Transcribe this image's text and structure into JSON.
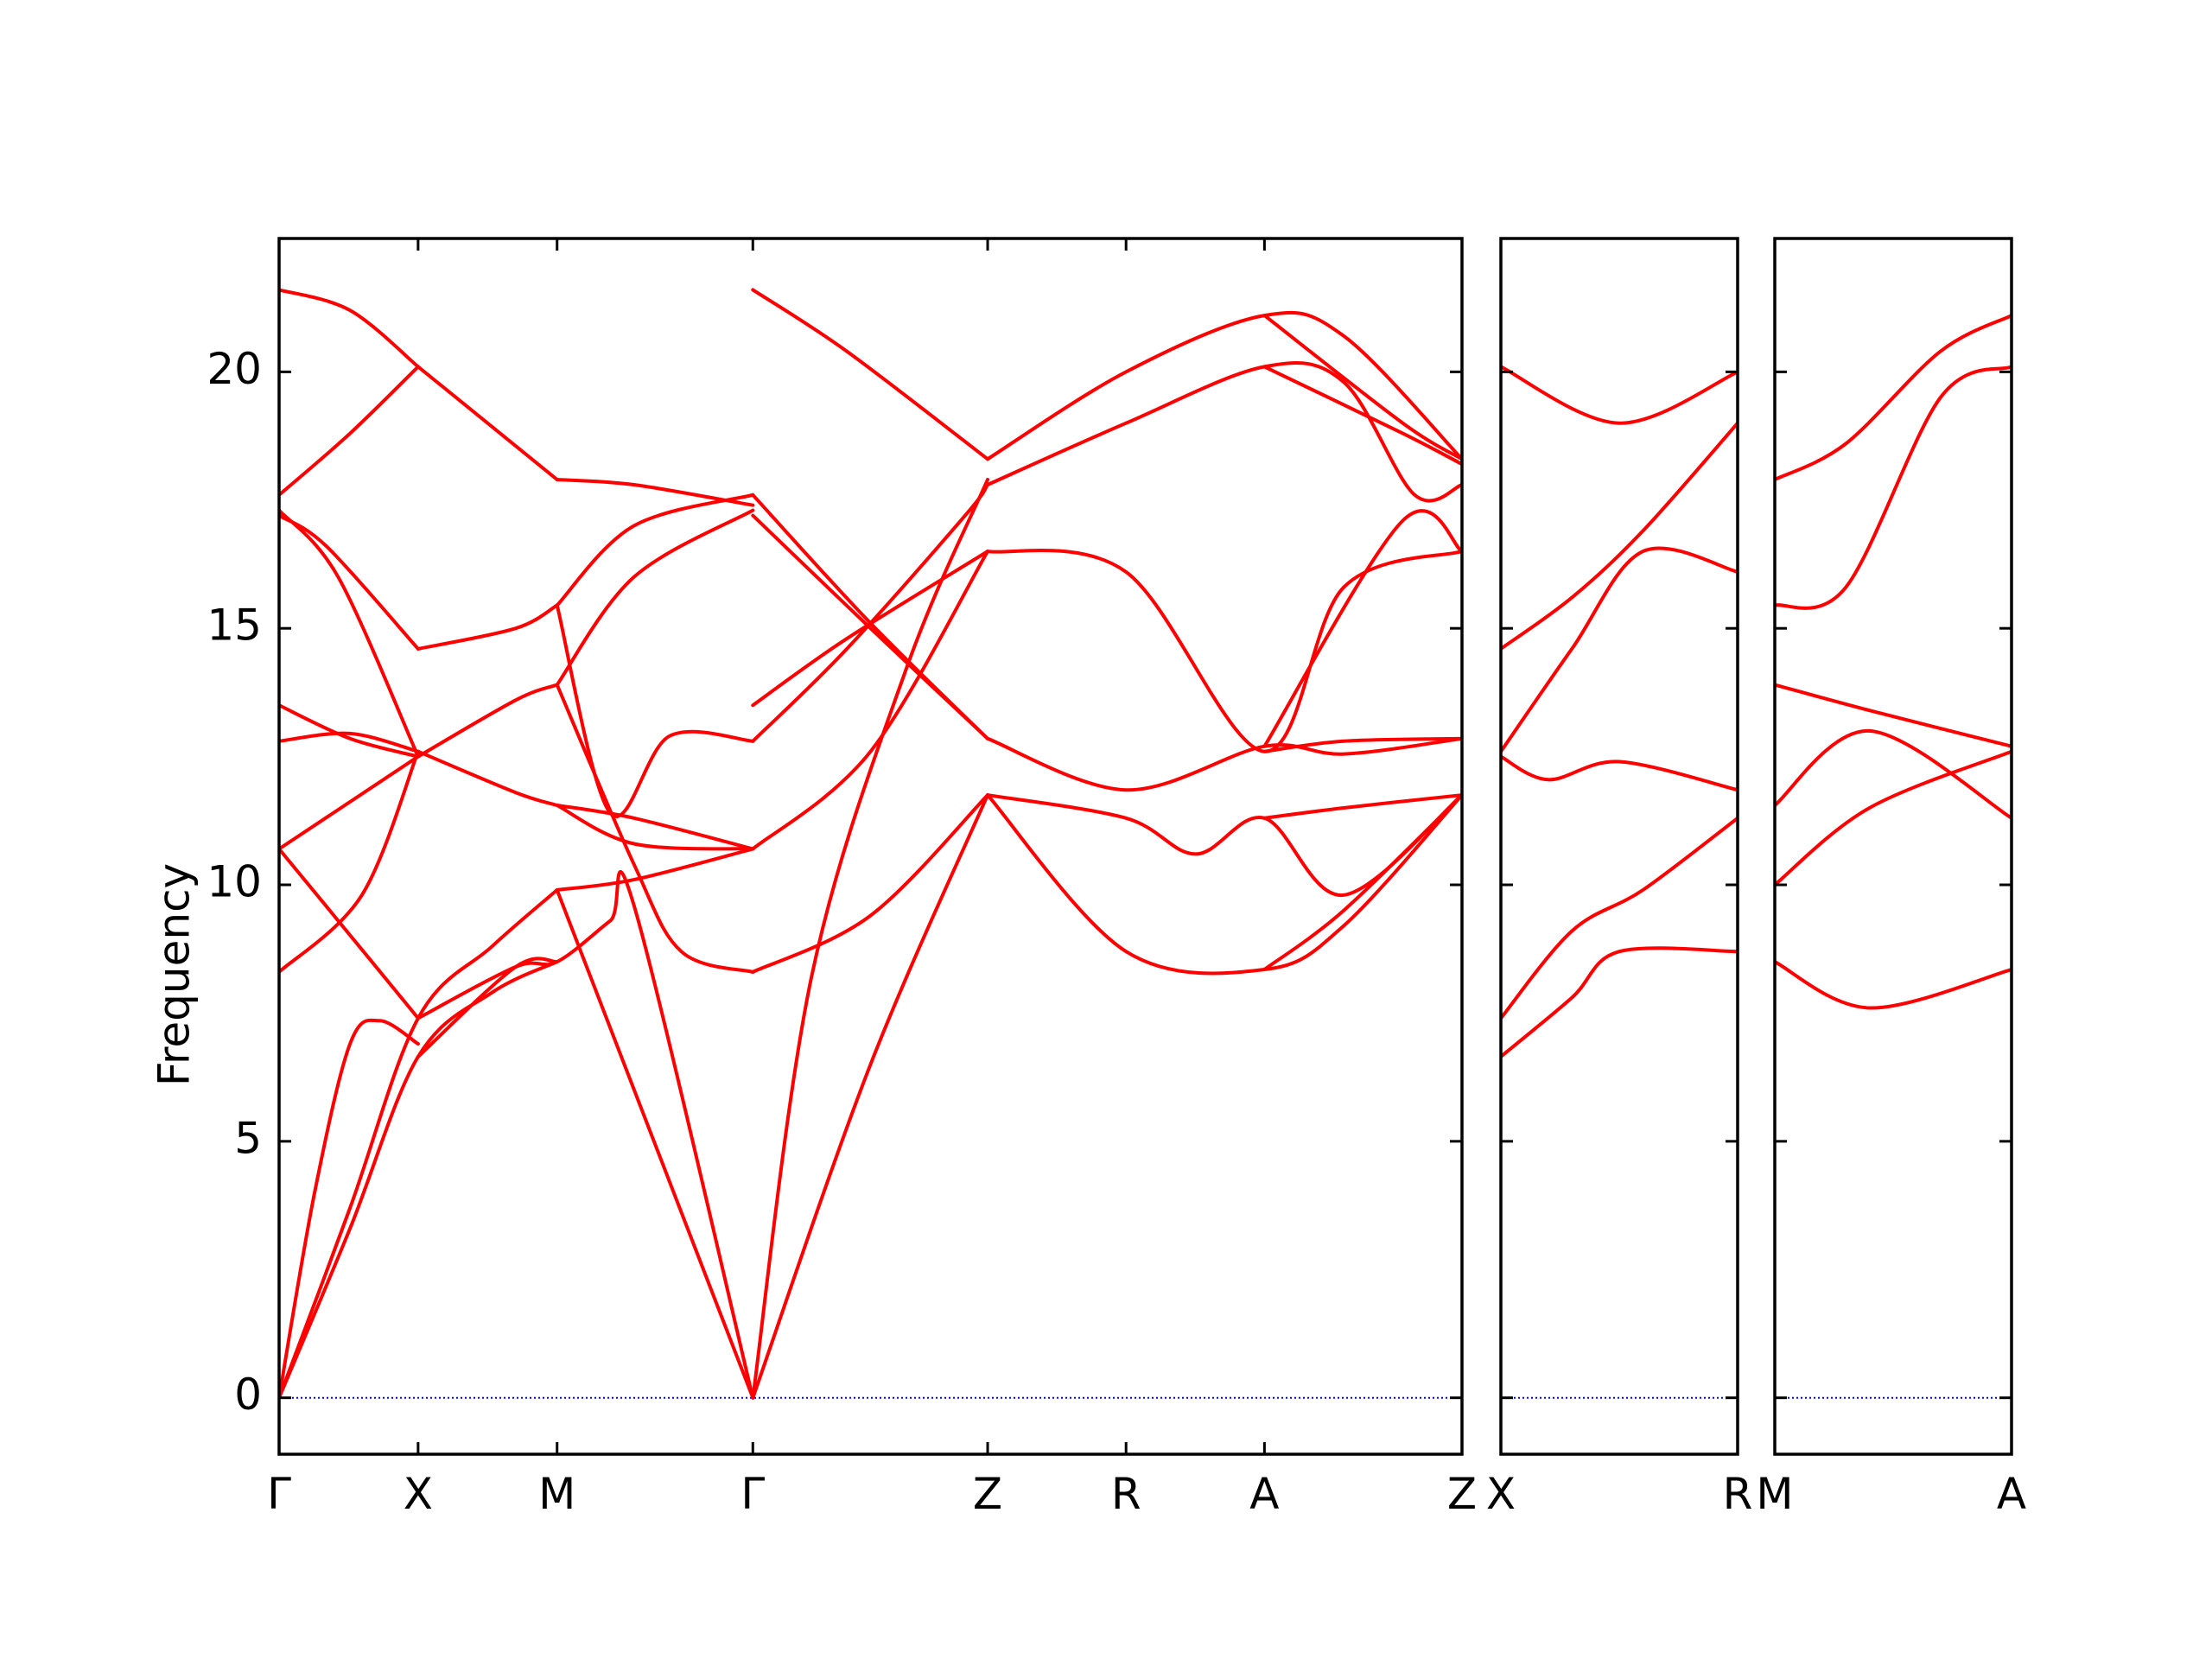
{
  "chart_data": {
    "type": "line",
    "ylabel": "Frequency",
    "ylim": [
      -1.1,
      22.6
    ],
    "yticks": [
      "0",
      "5",
      "10",
      "15",
      "20"
    ],
    "ytick_values": [
      0,
      5,
      10,
      15,
      20
    ],
    "colors": {
      "bands": "#ff0000",
      "zero_line": "#0000ff",
      "axes": "#000000"
    },
    "grid": false,
    "panels": [
      {
        "name": "panel-main",
        "xlabels": [
          "Γ",
          "X",
          "M",
          "Γ",
          "Z",
          "R",
          "A",
          "Z"
        ],
        "x_range": [
          0,
          1
        ],
        "xticks": [
          0,
          0.1175,
          0.235,
          0.4005,
          0.599,
          0.716,
          0.833,
          1
        ],
        "bands": [
          [
            [
              0,
              0
            ],
            [
              0.03,
              4.0
            ],
            [
              0.06,
              6.9
            ],
            [
              0.085,
              7.35
            ],
            [
              0.1175,
              6.9
            ]
          ],
          [
            [
              0,
              0
            ],
            [
              0.06,
              3.7
            ],
            [
              0.1175,
              7.4
            ],
            [
              0.18,
              8.8
            ],
            [
              0.235,
              9.9
            ]
          ],
          [
            [
              0,
              0
            ],
            [
              0.06,
              3.3
            ],
            [
              0.1175,
              6.65
            ],
            [
              0.18,
              7.9
            ],
            [
              0.235,
              8.5
            ]
          ],
          [
            [
              0.1175,
              7.4
            ],
            [
              0.2,
              8.4
            ],
            [
              0.235,
              8.5
            ],
            [
              0.28,
              9.3
            ],
            [
              0.3,
              9.6
            ],
            [
              0.4005,
              0
            ]
          ],
          [
            [
              0.235,
              9.9
            ],
            [
              0.4005,
              0
            ]
          ],
          [
            [
              0.1175,
              6.65
            ],
            [
              0.2,
              8.4
            ],
            [
              0.235,
              8.5
            ]
          ],
          [
            [
              0,
              10.7
            ],
            [
              0.05,
              9.3
            ],
            [
              0.1175,
              7.4
            ]
          ],
          [
            [
              0,
              8.3
            ],
            [
              0.07,
              9.8
            ],
            [
              0.1175,
              12.6
            ]
          ],
          [
            [
              0,
              10.7
            ],
            [
              0.1175,
              12.5
            ]
          ],
          [
            [
              0,
              12.8
            ],
            [
              0.06,
              12.95
            ],
            [
              0.1175,
              12.6
            ]
          ],
          [
            [
              0,
              13.5
            ],
            [
              0.06,
              12.85
            ],
            [
              0.1175,
              12.5
            ]
          ],
          [
            [
              0,
              17.3
            ],
            [
              0.05,
              16.0
            ],
            [
              0.1175,
              12.5
            ]
          ],
          [
            [
              0,
              17.2
            ],
            [
              0.04,
              16.6
            ],
            [
              0.1175,
              14.6
            ]
          ],
          [
            [
              0,
              17.6
            ],
            [
              0.06,
              18.8
            ],
            [
              0.1175,
              20.1
            ]
          ],
          [
            [
              0,
              21.6
            ],
            [
              0.06,
              21.2
            ],
            [
              0.1175,
              20.1
            ]
          ],
          [
            [
              0.1175,
              20.1
            ],
            [
              0.235,
              17.9
            ]
          ],
          [
            [
              0.1175,
              14.6
            ],
            [
              0.2,
              15.0
            ],
            [
              0.235,
              15.45
            ]
          ],
          [
            [
              0.1175,
              12.6
            ],
            [
              0.2,
              11.8
            ],
            [
              0.235,
              11.55
            ]
          ],
          [
            [
              0.1175,
              12.5
            ],
            [
              0.2,
              13.6
            ],
            [
              0.235,
              13.9
            ]
          ],
          [
            [
              0.235,
              15.45
            ],
            [
              0.3,
              17.0
            ],
            [
              0.4005,
              17.6
            ]
          ],
          [
            [
              0.235,
              17.9
            ],
            [
              0.3,
              17.8
            ],
            [
              0.4005,
              17.4
            ]
          ],
          [
            [
              0.235,
              13.9
            ],
            [
              0.3,
              16.0
            ],
            [
              0.4005,
              17.3
            ]
          ],
          [
            [
              0.235,
              11.55
            ],
            [
              0.3,
              11.3
            ],
            [
              0.4005,
              10.7
            ]
          ],
          [
            [
              0.235,
              9.9
            ],
            [
              0.3,
              10.1
            ],
            [
              0.4005,
              10.7
            ]
          ],
          [
            [
              0.235,
              15.45
            ],
            [
              0.28,
              11.4
            ],
            [
              0.33,
              12.9
            ],
            [
              0.4005,
              12.8
            ]
          ],
          [
            [
              0.235,
              13.9
            ],
            [
              0.3,
              10.4
            ],
            [
              0.34,
              8.7
            ],
            [
              0.4005,
              8.3
            ]
          ],
          [
            [
              0.235,
              11.55
            ],
            [
              0.3,
              10.8
            ],
            [
              0.4005,
              10.7
            ]
          ],
          [
            [
              0.4005,
              21.6
            ],
            [
              0.48,
              20.4
            ],
            [
              0.599,
              18.3
            ]
          ],
          [
            [
              0.4005,
              17.6
            ],
            [
              0.5,
              15.1
            ],
            [
              0.599,
              12.85
            ]
          ],
          [
            [
              0.4005,
              17.2
            ],
            [
              0.5,
              15.0
            ],
            [
              0.599,
              12.85
            ]
          ],
          [
            [
              0.4005,
              13.5
            ],
            [
              0.48,
              14.8
            ],
            [
              0.599,
              16.5
            ]
          ],
          [
            [
              0.4005,
              12.8
            ],
            [
              0.48,
              14.6
            ],
            [
              0.58,
              17.2
            ],
            [
              0.599,
              17.8
            ]
          ],
          [
            [
              0.4005,
              10.7
            ],
            [
              0.5,
              12.6
            ],
            [
              0.599,
              16.5
            ]
          ],
          [
            [
              0.4005,
              8.3
            ],
            [
              0.5,
              9.4
            ],
            [
              0.599,
              11.75
            ]
          ],
          [
            [
              0.4005,
              0
            ],
            [
              0.45,
              8.2
            ],
            [
              0.53,
              14.2
            ],
            [
              0.599,
              17.9
            ]
          ],
          [
            [
              0.4005,
              0
            ],
            [
              0.5,
              6.5
            ],
            [
              0.599,
              11.75
            ]
          ],
          [
            [
              0.599,
              18.3
            ],
            [
              0.716,
              20.0
            ],
            [
              0.833,
              21.1
            ],
            [
              0.9,
              20.7
            ],
            [
              1,
              18.3
            ]
          ],
          [
            [
              0.599,
              17.8
            ],
            [
              0.716,
              19.0
            ],
            [
              0.833,
              20.1
            ],
            [
              0.9,
              19.8
            ],
            [
              0.96,
              17.6
            ],
            [
              1,
              17.8
            ]
          ],
          [
            [
              0.599,
              16.5
            ],
            [
              0.716,
              16.1
            ],
            [
              0.833,
              12.6
            ],
            [
              0.9,
              15.8
            ],
            [
              1,
              16.5
            ]
          ],
          [
            [
              0.599,
              12.85
            ],
            [
              0.716,
              11.85
            ],
            [
              0.833,
              12.7
            ],
            [
              0.9,
              12.55
            ],
            [
              1,
              12.85
            ]
          ],
          [
            [
              0.599,
              11.75
            ],
            [
              0.716,
              11.3
            ],
            [
              0.775,
              10.6
            ],
            [
              0.833,
              11.3
            ],
            [
              0.9,
              9.8
            ],
            [
              1,
              11.75
            ]
          ],
          [
            [
              0.599,
              11.75
            ],
            [
              0.716,
              8.7
            ],
            [
              0.833,
              8.35
            ],
            [
              0.9,
              9.2
            ],
            [
              1,
              11.75
            ]
          ],
          [
            [
              0.833,
              12.7
            ],
            [
              0.95,
              17.1
            ],
            [
              1,
              16.5
            ]
          ],
          [
            [
              0.833,
              21.1
            ],
            [
              0.95,
              19.0
            ],
            [
              1,
              18.3
            ]
          ],
          [
            [
              0.833,
              20.1
            ],
            [
              0.95,
              18.8
            ],
            [
              1,
              18.2
            ]
          ],
          [
            [
              0.833,
              12.6
            ],
            [
              0.9,
              12.8
            ],
            [
              1,
              12.85
            ]
          ],
          [
            [
              0.833,
              11.3
            ],
            [
              0.9,
              11.5
            ],
            [
              1,
              11.75
            ]
          ],
          [
            [
              0.833,
              8.35
            ],
            [
              0.9,
              9.5
            ],
            [
              1,
              11.75
            ]
          ]
        ]
      },
      {
        "name": "panel-xr",
        "xlabels": [
          "X",
          "R"
        ],
        "x_range": [
          0,
          1
        ],
        "xticks": [
          0,
          1
        ],
        "bands": [
          [
            [
              0,
              20.1
            ],
            [
              0.5,
              19.0
            ],
            [
              1,
              20.0
            ]
          ],
          [
            [
              0,
              14.6
            ],
            [
              0.3,
              15.6
            ],
            [
              0.6,
              16.9
            ],
            [
              1,
              19.0
            ]
          ],
          [
            [
              0,
              12.6
            ],
            [
              0.3,
              14.6
            ],
            [
              0.6,
              16.5
            ],
            [
              1,
              16.1
            ]
          ],
          [
            [
              0,
              12.5
            ],
            [
              0.2,
              12.05
            ],
            [
              0.5,
              12.4
            ],
            [
              1,
              11.85
            ]
          ],
          [
            [
              0,
              7.4
            ],
            [
              0.3,
              9.1
            ],
            [
              0.6,
              9.9
            ],
            [
              1,
              11.3
            ]
          ],
          [
            [
              0,
              6.65
            ],
            [
              0.3,
              7.8
            ],
            [
              0.5,
              8.7
            ],
            [
              1,
              8.7
            ]
          ]
        ]
      },
      {
        "name": "panel-ma",
        "xlabels": [
          "M",
          "A"
        ],
        "x_range": [
          0,
          1
        ],
        "xticks": [
          0,
          1
        ],
        "bands": [
          [
            [
              0,
              17.9
            ],
            [
              0.3,
              18.6
            ],
            [
              0.7,
              20.4
            ],
            [
              1,
              21.1
            ]
          ],
          [
            [
              0,
              15.45
            ],
            [
              0.3,
              15.8
            ],
            [
              0.7,
              19.5
            ],
            [
              1,
              20.1
            ]
          ],
          [
            [
              0,
              13.9
            ],
            [
              0.4,
              13.4
            ],
            [
              1,
              12.7
            ]
          ],
          [
            [
              0,
              11.55
            ],
            [
              0.4,
              13.0
            ],
            [
              1,
              11.3
            ]
          ],
          [
            [
              0,
              10.0
            ],
            [
              0.4,
              11.5
            ],
            [
              1,
              12.6
            ]
          ],
          [
            [
              0,
              8.5
            ],
            [
              0.4,
              7.6
            ],
            [
              1,
              8.35
            ]
          ]
        ]
      }
    ]
  }
}
